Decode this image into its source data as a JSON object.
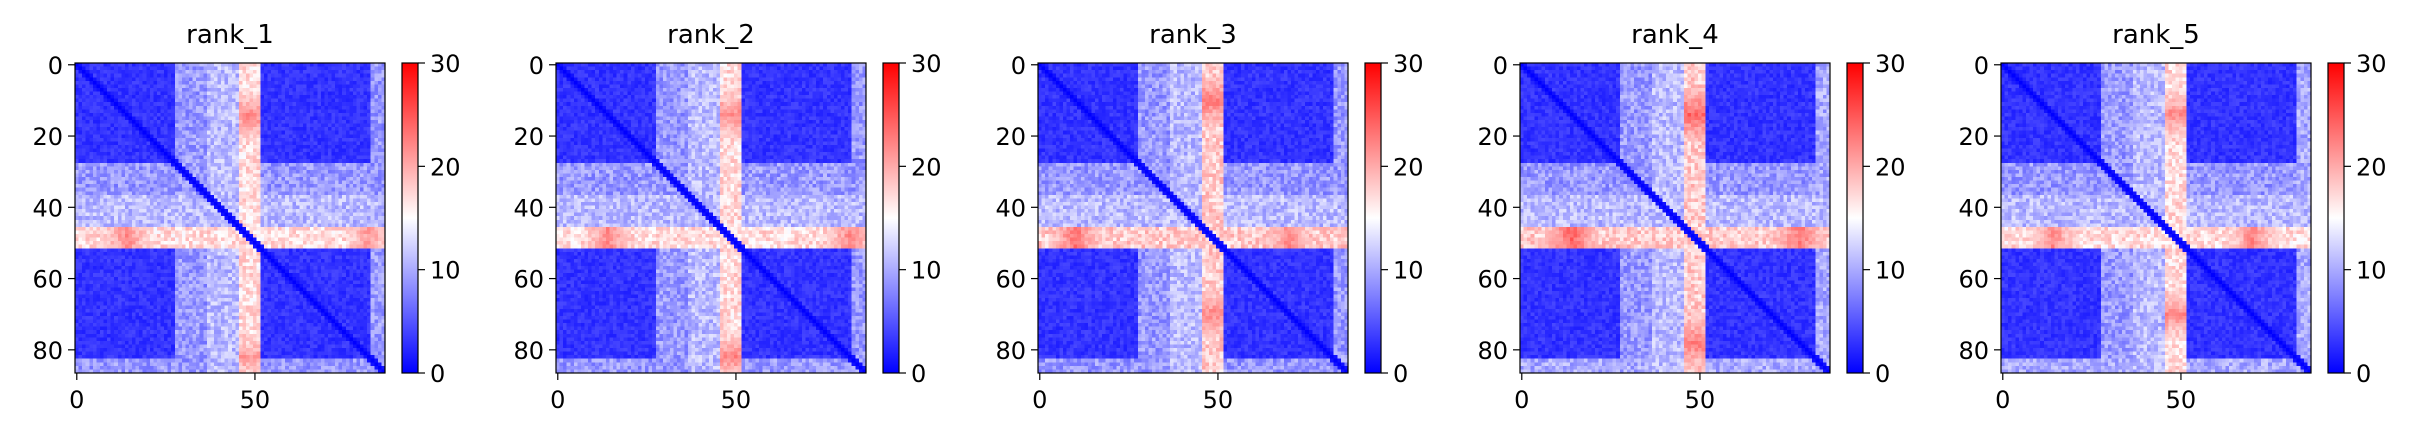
{
  "chart_data": [
    {
      "type": "heatmap",
      "title": "rank_1",
      "matrix_size": 87,
      "x_ticks": [
        0,
        50
      ],
      "y_ticks": [
        0,
        20,
        40,
        60,
        80
      ],
      "colorbar": {
        "min": 0,
        "max": 30,
        "ticks": [
          0,
          10,
          20,
          30
        ],
        "colormap": "bwr"
      },
      "bands": [
        {
          "rows": [
            28,
            36
          ],
          "level": 9
        },
        {
          "rows": [
            37,
            45
          ],
          "level": 11
        },
        {
          "rows": [
            46,
            51
          ],
          "level": 17,
          "peaks": [
            {
              "col": 14,
              "value": 22
            },
            {
              "col": 82,
              "value": 21
            }
          ]
        },
        {
          "rows": [
            83,
            86
          ],
          "level": 9
        }
      ],
      "base_level": 3
    },
    {
      "type": "heatmap",
      "title": "rank_2",
      "matrix_size": 87,
      "x_ticks": [
        0,
        50
      ],
      "y_ticks": [
        0,
        20,
        40,
        60,
        80
      ],
      "colorbar": {
        "min": 0,
        "max": 30,
        "ticks": [
          0,
          10,
          20,
          30
        ],
        "colormap": "bwr"
      },
      "bands": [
        {
          "rows": [
            28,
            36
          ],
          "level": 9
        },
        {
          "rows": [
            37,
            45
          ],
          "level": 11
        },
        {
          "rows": [
            46,
            51
          ],
          "level": 17,
          "peaks": [
            {
              "col": 14,
              "value": 22
            },
            {
              "col": 82,
              "value": 22
            }
          ]
        },
        {
          "rows": [
            83,
            86
          ],
          "level": 9
        }
      ],
      "base_level": 3
    },
    {
      "type": "heatmap",
      "title": "rank_3",
      "matrix_size": 87,
      "x_ticks": [
        0,
        50
      ],
      "y_ticks": [
        0,
        20,
        40,
        60,
        80
      ],
      "colorbar": {
        "min": 0,
        "max": 30,
        "ticks": [
          0,
          10,
          20,
          30
        ],
        "colormap": "bwr"
      },
      "bands": [
        {
          "rows": [
            28,
            36
          ],
          "level": 9
        },
        {
          "rows": [
            37,
            45
          ],
          "level": 11
        },
        {
          "rows": [
            46,
            51
          ],
          "level": 18,
          "peaks": [
            {
              "col": 10,
              "value": 23
            },
            {
              "col": 70,
              "value": 22
            }
          ]
        },
        {
          "rows": [
            83,
            86
          ],
          "level": 9
        }
      ],
      "base_level": 3
    },
    {
      "type": "heatmap",
      "title": "rank_4",
      "matrix_size": 87,
      "x_ticks": [
        0,
        50
      ],
      "y_ticks": [
        0,
        20,
        40,
        60,
        80
      ],
      "colorbar": {
        "min": 0,
        "max": 30,
        "ticks": [
          0,
          10,
          20,
          30
        ],
        "colormap": "bwr"
      },
      "bands": [
        {
          "rows": [
            28,
            36
          ],
          "level": 9
        },
        {
          "rows": [
            37,
            45
          ],
          "level": 11
        },
        {
          "rows": [
            46,
            51
          ],
          "level": 18,
          "peaks": [
            {
              "col": 14,
              "value": 24
            },
            {
              "col": 78,
              "value": 23
            }
          ]
        },
        {
          "rows": [
            83,
            86
          ],
          "level": 10
        }
      ],
      "base_level": 3
    },
    {
      "type": "heatmap",
      "title": "rank_5",
      "matrix_size": 87,
      "x_ticks": [
        0,
        50
      ],
      "y_ticks": [
        0,
        20,
        40,
        60,
        80
      ],
      "colorbar": {
        "min": 0,
        "max": 30,
        "ticks": [
          0,
          10,
          20,
          30
        ],
        "colormap": "bwr"
      },
      "bands": [
        {
          "rows": [
            28,
            36
          ],
          "level": 9
        },
        {
          "rows": [
            37,
            45
          ],
          "level": 11
        },
        {
          "rows": [
            46,
            51
          ],
          "level": 17,
          "peaks": [
            {
              "col": 14,
              "value": 22
            },
            {
              "col": 70,
              "value": 22
            }
          ]
        },
        {
          "rows": [
            83,
            86
          ],
          "level": 10
        }
      ],
      "base_level": 3
    }
  ]
}
